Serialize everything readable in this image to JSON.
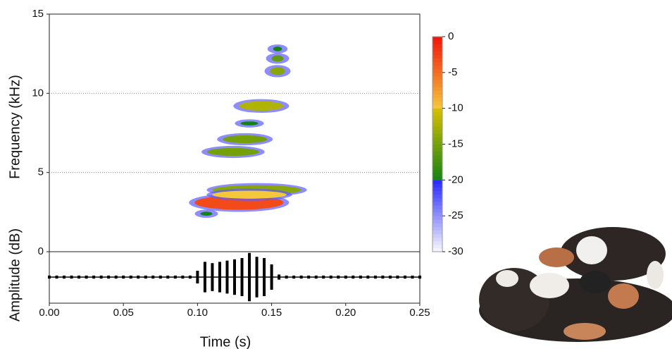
{
  "chart_data": {
    "type": "spectrogram",
    "xlabel": "Time (s)",
    "ylabel": "Frequency (kHz)",
    "xlim": [
      0,
      0.25
    ],
    "xticks": [
      {
        "value": 0,
        "label": "0.00"
      },
      {
        "value": 0.05,
        "label": "0.05"
      },
      {
        "value": 0.1,
        "label": "0.10"
      },
      {
        "value": 0.15,
        "label": "0.15"
      },
      {
        "value": 0.2,
        "label": "0.20"
      },
      {
        "value": 0.25,
        "label": "0.25"
      }
    ],
    "ylim": [
      0,
      15
    ],
    "yticks": [
      0,
      5,
      10,
      15
    ],
    "grid": true,
    "clim": [
      -30,
      0
    ],
    "cticks": [
      0,
      -5,
      -10,
      -15,
      -20,
      -25,
      -30
    ],
    "blobs": {
      "x": [
        0.154,
        0.154,
        0.154,
        0.143,
        0.135,
        0.132,
        0.124,
        0.14,
        0.128,
        0.135,
        0.106
      ],
      "y": [
        12.8,
        12.2,
        11.4,
        9.2,
        8.1,
        7.1,
        6.3,
        3.9,
        3.1,
        3.6,
        2.4
      ],
      "width": [
        0.006,
        0.008,
        0.01,
        0.03,
        0.012,
        0.03,
        0.035,
        0.06,
        0.06,
        0.05,
        0.008
      ],
      "height": [
        0.3,
        0.4,
        0.5,
        0.6,
        0.25,
        0.5,
        0.5,
        0.6,
        0.9,
        0.5,
        0.25
      ],
      "values": [
        -20,
        -16,
        -14,
        -12,
        -20,
        -15,
        -15,
        -14,
        -3,
        -10,
        -20
      ]
    },
    "waveform": {
      "ylabel": "Amplitude (dB)",
      "ylim": [
        -1,
        1
      ],
      "x": [
        0,
        0.005,
        0.01,
        0.015,
        0.02,
        0.025,
        0.03,
        0.035,
        0.04,
        0.045,
        0.05,
        0.055,
        0.06,
        0.065,
        0.07,
        0.075,
        0.08,
        0.085,
        0.09,
        0.095,
        0.1,
        0.105,
        0.11,
        0.115,
        0.12,
        0.125,
        0.13,
        0.135,
        0.14,
        0.145,
        0.15,
        0.155,
        0.16,
        0.165,
        0.17,
        0.175,
        0.18,
        0.185,
        0.19,
        0.195,
        0.2,
        0.205,
        0.21,
        0.215,
        0.22,
        0.225,
        0.23,
        0.235,
        0.24,
        0.245,
        0.25
      ],
      "values": [
        0.06,
        0.06,
        0.06,
        0.06,
        0.06,
        0.06,
        0.06,
        0.06,
        0.06,
        0.06,
        0.06,
        0.06,
        0.06,
        0.06,
        0.06,
        0.06,
        0.06,
        0.06,
        0.06,
        0.06,
        0.25,
        0.6,
        0.55,
        0.6,
        0.65,
        0.7,
        0.75,
        0.95,
        0.8,
        0.75,
        0.5,
        0.1,
        0.06,
        0.06,
        0.06,
        0.06,
        0.06,
        0.06,
        0.06,
        0.06,
        0.06,
        0.06,
        0.06,
        0.06,
        0.06,
        0.06,
        0.06,
        0.06,
        0.06,
        0.06,
        0.06
      ]
    }
  }
}
